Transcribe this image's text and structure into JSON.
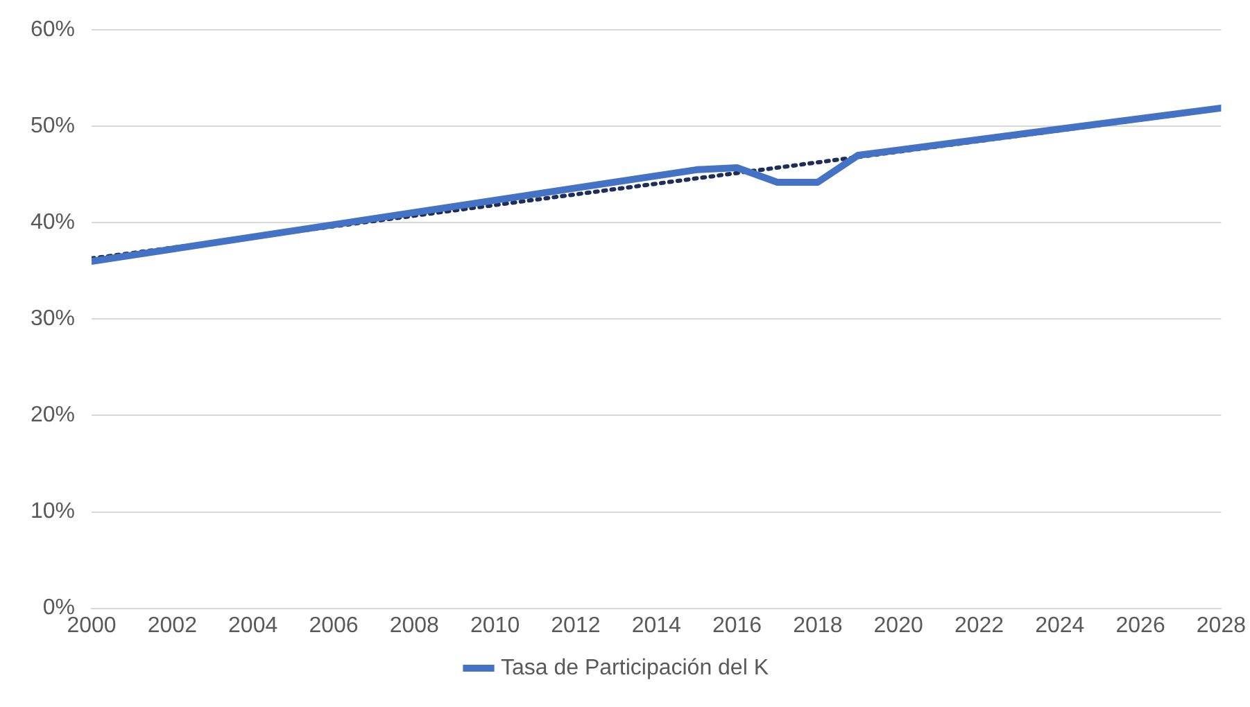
{
  "chart_data": {
    "type": "line",
    "x": [
      2000,
      2015,
      2016,
      2017,
      2018,
      2019,
      2028
    ],
    "series": [
      {
        "name": "Tasa de Participación del K",
        "color": "#4472c4",
        "values": [
          36,
          45.5,
          45.7,
          44.2,
          44.2,
          47,
          51.9
        ]
      },
      {
        "type": "line",
        "color": "#1f2d5a",
        "line_style": "dotted",
        "x": [
          2000,
          2028
        ],
        "values": [
          36.3,
          51.8
        ]
      }
    ],
    "xlim": [
      2000,
      2028
    ],
    "xticks": [
      2000,
      2002,
      2004,
      2006,
      2008,
      2010,
      2012,
      2014,
      2016,
      2018,
      2020,
      2022,
      2024,
      2026,
      2028
    ],
    "ylim": [
      0,
      60
    ],
    "yticks": [
      {
        "value": 0,
        "label": "0%"
      },
      {
        "value": 10,
        "label": "10%"
      },
      {
        "value": 20,
        "label": "20%"
      },
      {
        "value": 30,
        "label": "30%"
      },
      {
        "value": 40,
        "label": "40%"
      },
      {
        "value": 50,
        "label": "50%"
      },
      {
        "value": 60,
        "label": "60%"
      }
    ],
    "grid": "y",
    "legend": "bottom",
    "marker": "none"
  }
}
